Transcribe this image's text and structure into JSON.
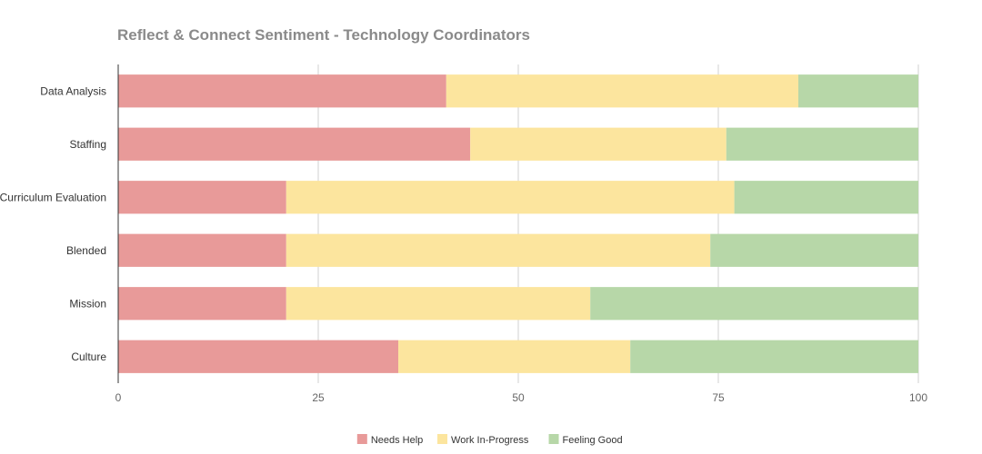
{
  "chart_data": {
    "type": "bar",
    "orientation": "horizontal",
    "stacked": true,
    "title": "Reflect & Connect Sentiment - Technology Coordinators",
    "xlabel": "",
    "ylabel": "",
    "xlim": [
      0,
      100
    ],
    "x_ticks": [
      "0",
      "25",
      "50",
      "75",
      "100"
    ],
    "categories": [
      "Data Analysis",
      "Staffing",
      "Curriculum Evaluation",
      "Blended",
      "Mission",
      "Culture"
    ],
    "series": [
      {
        "name": "Needs Help",
        "color": "#e89a99",
        "values": [
          41,
          44,
          21,
          21,
          21,
          35
        ]
      },
      {
        "name": "Work In-Progress",
        "color": "#fce59e",
        "values": [
          44,
          32,
          56,
          53,
          38,
          29
        ]
      },
      {
        "name": "Feeling Good",
        "color": "#b7d7a8",
        "values": [
          15,
          24,
          23,
          26,
          41,
          36
        ]
      }
    ],
    "grid": true,
    "legend": "bottom"
  }
}
